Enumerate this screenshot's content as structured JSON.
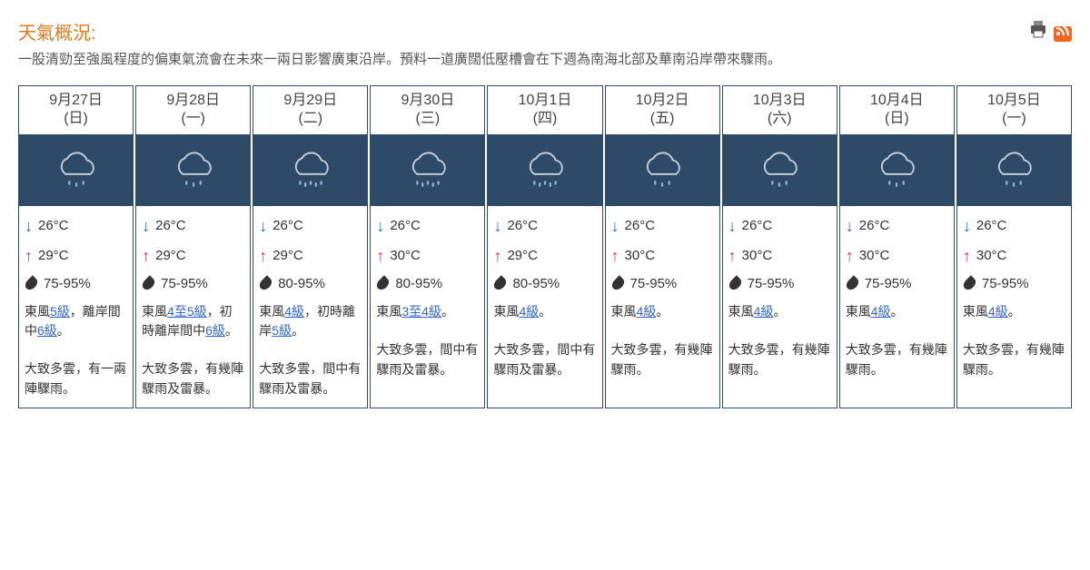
{
  "title": "天氣概況:",
  "synopsis": "一股清勁至強風程度的偏東氣流會在未來一兩日影響廣東沿岸。預料一道廣闊低壓槽會在下週為南海北部及華南沿岸帶來驟雨。",
  "colors": {
    "title": "#e67817",
    "card_border": "#314c6b",
    "icon_bg": "#2f4a66",
    "low_arrow": "#1e6fc0",
    "high_arrow": "#d6336c",
    "link": "#3366cc",
    "cloud_stroke": "#bfcedc",
    "drop_fill": "#87b3d6",
    "rss_bg": "#f26522"
  },
  "rain_levels": [
    "light",
    "light",
    "heavy",
    "heavy",
    "heavy",
    "light",
    "light",
    "light",
    "light"
  ],
  "days": [
    {
      "date": "9月27日",
      "dow": "(日)",
      "low": "26°C",
      "high": "29°C",
      "hum": "75-95%",
      "wind_parts": [
        "東風",
        "5級",
        "，離岸間中",
        "6級",
        "。"
      ],
      "desc": "大致多雲，有一兩陣驟雨。"
    },
    {
      "date": "9月28日",
      "dow": "(一)",
      "low": "26°C",
      "high": "29°C",
      "hum": "75-95%",
      "wind_parts": [
        "東風",
        "4至5級",
        "，初時離岸間中",
        "6級",
        "。"
      ],
      "desc": "大致多雲，有幾陣驟雨及雷暴。"
    },
    {
      "date": "9月29日",
      "dow": "(二)",
      "low": "26°C",
      "high": "29°C",
      "hum": "80-95%",
      "wind_parts": [
        "東風",
        "4級",
        "，初時離岸",
        "5級",
        "。"
      ],
      "desc": "大致多雲，間中有驟雨及雷暴。"
    },
    {
      "date": "9月30日",
      "dow": "(三)",
      "low": "26°C",
      "high": "30°C",
      "hum": "80-95%",
      "wind_parts": [
        "東風",
        "3至4級",
        "。"
      ],
      "desc": "大致多雲，間中有驟雨及雷暴。"
    },
    {
      "date": "10月1日",
      "dow": "(四)",
      "low": "26°C",
      "high": "29°C",
      "hum": "80-95%",
      "wind_parts": [
        "東風",
        "4級",
        "。"
      ],
      "desc": "大致多雲，間中有驟雨及雷暴。"
    },
    {
      "date": "10月2日",
      "dow": "(五)",
      "low": "26°C",
      "high": "30°C",
      "hum": "75-95%",
      "wind_parts": [
        "東風",
        "4級",
        "。"
      ],
      "desc": "大致多雲，有幾陣驟雨。"
    },
    {
      "date": "10月3日",
      "dow": "(六)",
      "low": "26°C",
      "high": "30°C",
      "hum": "75-95%",
      "wind_parts": [
        "東風",
        "4級",
        "。"
      ],
      "desc": "大致多雲，有幾陣驟雨。"
    },
    {
      "date": "10月4日",
      "dow": "(日)",
      "low": "26°C",
      "high": "30°C",
      "hum": "75-95%",
      "wind_parts": [
        "東風",
        "4級",
        "。"
      ],
      "desc": "大致多雲，有幾陣驟雨。"
    },
    {
      "date": "10月5日",
      "dow": "(一)",
      "low": "26°C",
      "high": "30°C",
      "hum": "75-95%",
      "wind_parts": [
        "東風",
        "4級",
        "。"
      ],
      "desc": "大致多雲，有幾陣驟雨。"
    }
  ]
}
